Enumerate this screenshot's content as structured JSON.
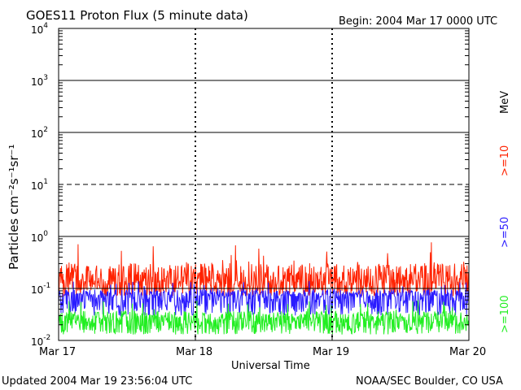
{
  "chart_data": {
    "type": "line",
    "title": "GOES11 Proton Flux (5 minute data)",
    "begin_label": "Begin: 2004 Mar 17 0000 UTC",
    "xlabel": "Universal Time",
    "ylabel": "Particles cm⁻²s⁻¹sr⁻¹",
    "yscale": "log",
    "ylim": [
      0.01,
      10000
    ],
    "y_ticks": [
      {
        "base": "10",
        "exp": "4"
      },
      {
        "base": "10",
        "exp": "3"
      },
      {
        "base": "10",
        "exp": "2"
      },
      {
        "base": "10",
        "exp": "1"
      },
      {
        "base": "10",
        "exp": "0"
      },
      {
        "base": "10",
        "exp": "-1"
      },
      {
        "base": "10",
        "exp": "-2"
      }
    ],
    "x_ticks": [
      "Mar 17",
      "Mar 18",
      "Mar 19",
      "Mar 20"
    ],
    "xlim_days": [
      0,
      3
    ],
    "legend": {
      "unit": "MeV",
      "entries": [
        {
          "label": ">=10",
          "color": "#ff2200"
        },
        {
          "label": ">=50",
          "color": "#2a1bff"
        },
        {
          "label": ">=100",
          "color": "#22ee22"
        }
      ]
    },
    "series": [
      {
        "name": ">=10 MeV",
        "color": "#ff2200",
        "typical": 0.14,
        "range": [
          0.07,
          0.8
        ]
      },
      {
        "name": ">=50 MeV",
        "color": "#2a1bff",
        "typical": 0.07,
        "range": [
          0.03,
          0.14
        ]
      },
      {
        "name": ">=100 MeV",
        "color": "#22ee22",
        "typical": 0.025,
        "range": [
          0.013,
          0.06
        ]
      }
    ],
    "threshold_lines": [
      {
        "value": 10,
        "style": "dashed"
      },
      {
        "value": 0.1,
        "style": "solid"
      }
    ]
  },
  "footer": {
    "updated": "Updated 2004 Mar 19 23:56:04 UTC",
    "source": "NOAA/SEC Boulder, CO USA"
  }
}
